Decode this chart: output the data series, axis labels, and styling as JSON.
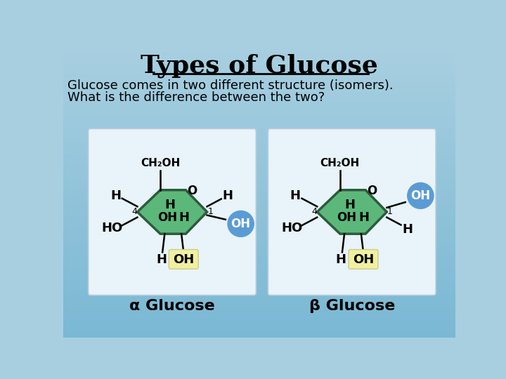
{
  "title": "Types of Glucose",
  "subtitle_line1": "Glucose comes in two different structure (isomers).",
  "subtitle_line2": "What is the difference between the two?",
  "bg_color_top": "#a8cfe0",
  "bg_color_bottom": "#7ab8d4",
  "green_fill": "#5cb87a",
  "green_edge": "#2d5a3d",
  "blue_circle_color": "#5b9bd5",
  "yellow_highlight": "#f0f0a0",
  "card_color": "#e8f4fa",
  "alpha_label": "α Glucose",
  "beta_label": "β Glucose"
}
